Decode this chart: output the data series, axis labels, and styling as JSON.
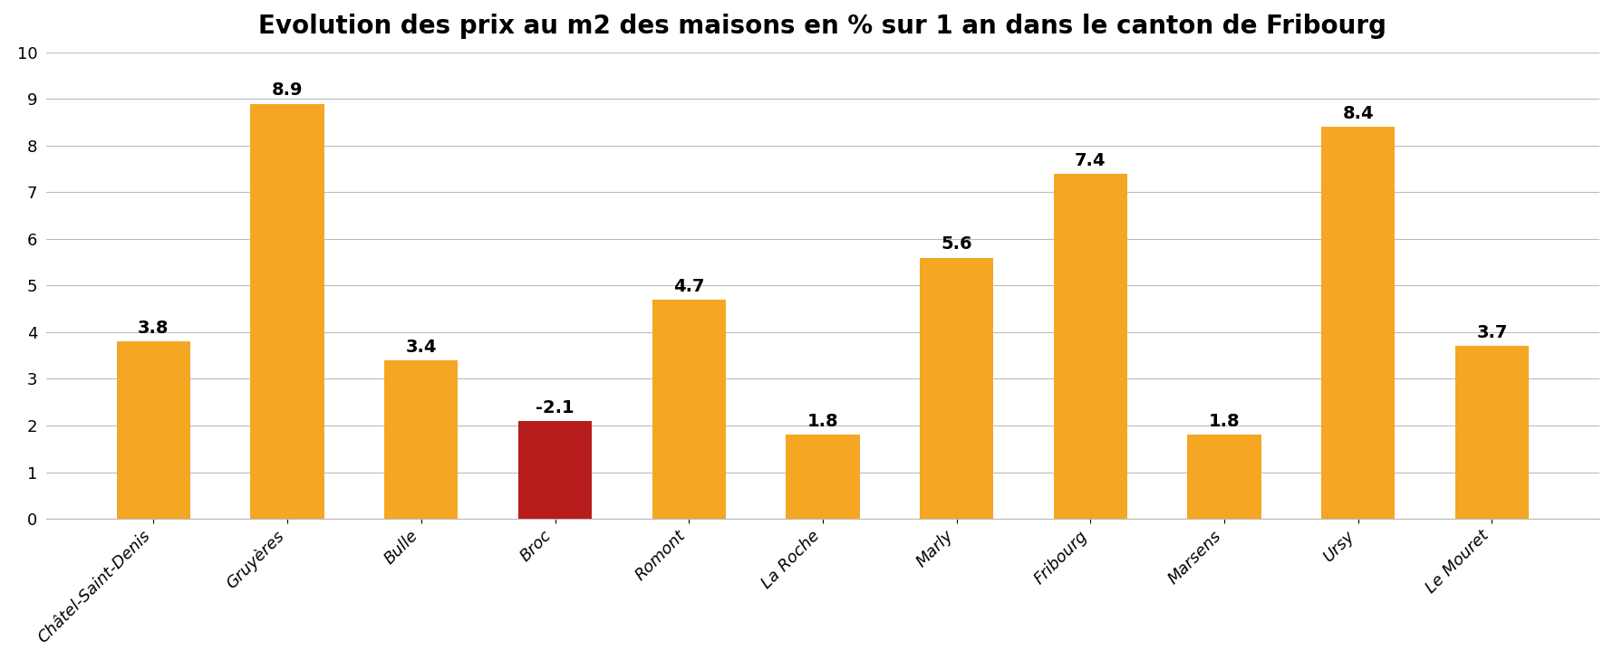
{
  "title": "Evolution des prix au m2 des maisons en % sur 1 an dans le canton de Fribourg",
  "categories": [
    "Châtel-Saint-Denis",
    "Gruyères",
    "Bulle",
    "Broc",
    "Romont",
    "La Roche",
    "Marly",
    "Fribourg",
    "Marsens",
    "Ursy",
    "Le Mouret"
  ],
  "bar_heights": [
    3.8,
    8.9,
    3.4,
    2.1,
    4.7,
    1.8,
    5.6,
    7.4,
    1.8,
    8.4,
    3.7
  ],
  "bar_labels": [
    "3.8",
    "8.9",
    "3.4",
    "-2.1",
    "4.7",
    "1.8",
    "5.6",
    "7.4",
    "1.8",
    "8.4",
    "3.7"
  ],
  "bar_colors": [
    "#F5A623",
    "#F5A623",
    "#F5A623",
    "#B71C1C",
    "#F5A623",
    "#F5A623",
    "#F5A623",
    "#F5A623",
    "#F5A623",
    "#F5A623",
    "#F5A623"
  ],
  "ylim": [
    0,
    10
  ],
  "yticks": [
    0,
    1,
    2,
    3,
    4,
    5,
    6,
    7,
    8,
    9,
    10
  ],
  "background_color": "#FFFFFF",
  "title_fontsize": 20,
  "tick_fontsize": 13,
  "bar_label_fontsize": 14,
  "grid_color": "#BBBBBB"
}
